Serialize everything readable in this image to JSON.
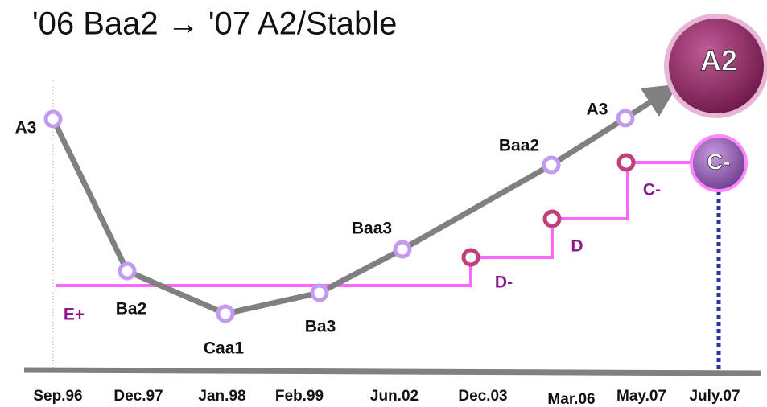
{
  "title": "'06 Baa2 → '07 A2/Stable",
  "timeline": [
    "Sep.96",
    "Dec.97",
    "Jan.98",
    "Feb.99",
    "Jun.02",
    "Dec.03",
    "Mar.06",
    "May.07",
    "July.07"
  ],
  "ratings": [
    "A3",
    "Ba2",
    "Caa1",
    "Ba3",
    "Baa3",
    "Baa2",
    "A3"
  ],
  "steps": [
    "E+",
    "D-",
    "D",
    "C-"
  ],
  "target_rating": "A2",
  "target_step": "C-"
}
